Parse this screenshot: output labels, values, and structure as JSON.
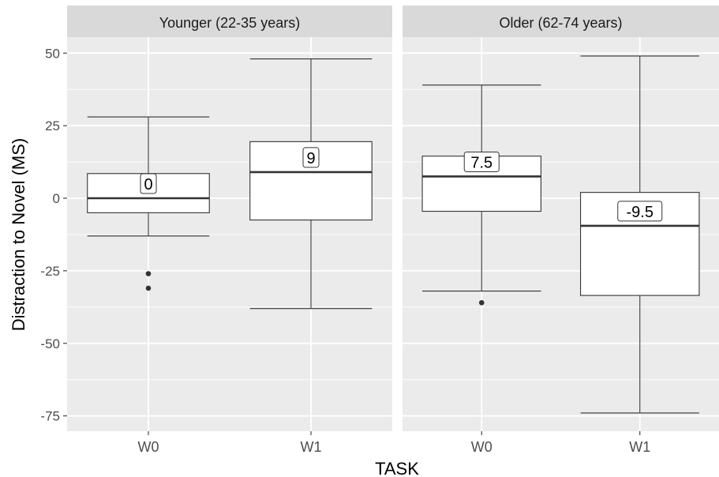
{
  "chart_data": {
    "type": "box",
    "xlabel": "TASK",
    "ylabel": "Distraction to Novel (MS)",
    "ylim": [
      -80,
      55
    ],
    "yticks": [
      50,
      25,
      0,
      -25,
      -50,
      -75
    ],
    "grid": true,
    "panels": [
      {
        "title": "Younger (22-35 years)",
        "categories": [
          "W0",
          "W1"
        ],
        "boxes": [
          {
            "x": "W0",
            "lower_whisker": -13,
            "q1": -5,
            "median": 0,
            "q3": 8.5,
            "upper_whisker": 28,
            "outliers": [
              -26,
              -31
            ],
            "label": "0"
          },
          {
            "x": "W1",
            "lower_whisker": -38,
            "q1": -7.5,
            "median": 9,
            "q3": 19.5,
            "upper_whisker": 48,
            "outliers": [],
            "label": "9"
          }
        ]
      },
      {
        "title": "Older (62-74 years)",
        "categories": [
          "W0",
          "W1"
        ],
        "boxes": [
          {
            "x": "W0",
            "lower_whisker": -32,
            "q1": -4.5,
            "median": 7.5,
            "q3": 14.5,
            "upper_whisker": 39,
            "outliers": [
              -36
            ],
            "label": "7.5"
          },
          {
            "x": "W1",
            "lower_whisker": -74,
            "q1": -33.5,
            "median": -9.5,
            "q3": 2,
            "upper_whisker": 49,
            "outliers": [],
            "label": "-9.5"
          }
        ]
      }
    ],
    "colors": {
      "panel_bg": "#ebebeb",
      "strip_bg": "#d9d9d9",
      "grid": "#ffffff",
      "box_fill": "#ffffff",
      "box_line": "#333333"
    }
  }
}
